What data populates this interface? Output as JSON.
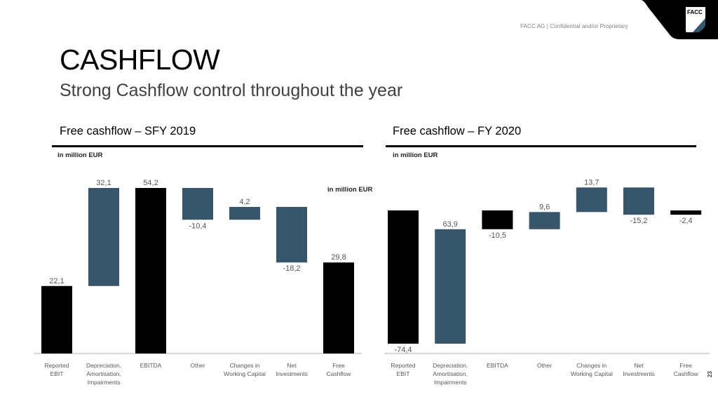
{
  "header": {
    "confidential": "FACC AG | Confidential and/or Proprietary",
    "logo_text": "FACC",
    "title": "CASHFLOW",
    "subtitle": "Strong Cashflow control throughout the year",
    "page_number": "23"
  },
  "colors": {
    "total_bar": "#000000",
    "delta_bar": "#37556b",
    "axis": "#bfbfbf",
    "label": "#595959"
  },
  "chart_data": [
    {
      "type": "bar",
      "subtype": "waterfall",
      "title": "Free cashflow – SFY 2019",
      "unit_label": "in million EUR",
      "extra_unit_label": "in million EUR",
      "categories": [
        "Reported EBIT",
        "Depreciation, Amortisation, Impairments",
        "EBITDA",
        "Other",
        "Changes in Working Capital",
        "Net Investments",
        "Free Cashflow"
      ],
      "category_lines": [
        [
          "Reported",
          "EBIT"
        ],
        [
          "Depreciation,",
          "Amortisation,",
          "Impairments"
        ],
        [
          "EBITDA"
        ],
        [
          "Other"
        ],
        [
          "Changes in",
          "Working Capital"
        ],
        [
          "Net",
          "Investments"
        ],
        [
          "Free",
          "Cashflow"
        ]
      ],
      "values": [
        22.1,
        32.1,
        54.2,
        -10.4,
        4.2,
        -18.2,
        29.8
      ],
      "labels": [
        "22,1",
        "32,1",
        "54,2",
        "-10,4",
        "4,2",
        "-18,2",
        "29,8"
      ],
      "kinds": [
        "total",
        "delta",
        "total",
        "delta",
        "delta",
        "delta",
        "total"
      ],
      "ylim": [
        0,
        54.2
      ],
      "grid": false,
      "legend": "none"
    },
    {
      "type": "bar",
      "subtype": "waterfall",
      "title": "Free cashflow – FY 2020",
      "unit_label": "in million EUR",
      "categories": [
        "Reported EBIT",
        "Depreciation, Amortisation, Impairments",
        "EBITDA",
        "Other",
        "Changes in Working Capital",
        "Net Investments",
        "Free Cashflow"
      ],
      "category_lines": [
        [
          "Reported",
          "EBIT"
        ],
        [
          "Depreciation,",
          "Amortisation,",
          "Impairments"
        ],
        [
          "EBITDA"
        ],
        [
          "Other"
        ],
        [
          "Changes in",
          "Working Capital"
        ],
        [
          "Net",
          "Investments"
        ],
        [
          "Free",
          "Cashflow"
        ]
      ],
      "values": [
        -74.4,
        63.9,
        -10.5,
        9.6,
        13.7,
        -15.2,
        -2.4
      ],
      "labels": [
        "-74,4",
        "63,9",
        "-10,5",
        "9,6",
        "13,7",
        "-15,2",
        "-2,4"
      ],
      "kinds": [
        "total",
        "delta",
        "total",
        "delta",
        "delta",
        "delta",
        "total"
      ],
      "ylim": [
        -74.4,
        13.7
      ],
      "grid": false,
      "legend": "none"
    }
  ]
}
